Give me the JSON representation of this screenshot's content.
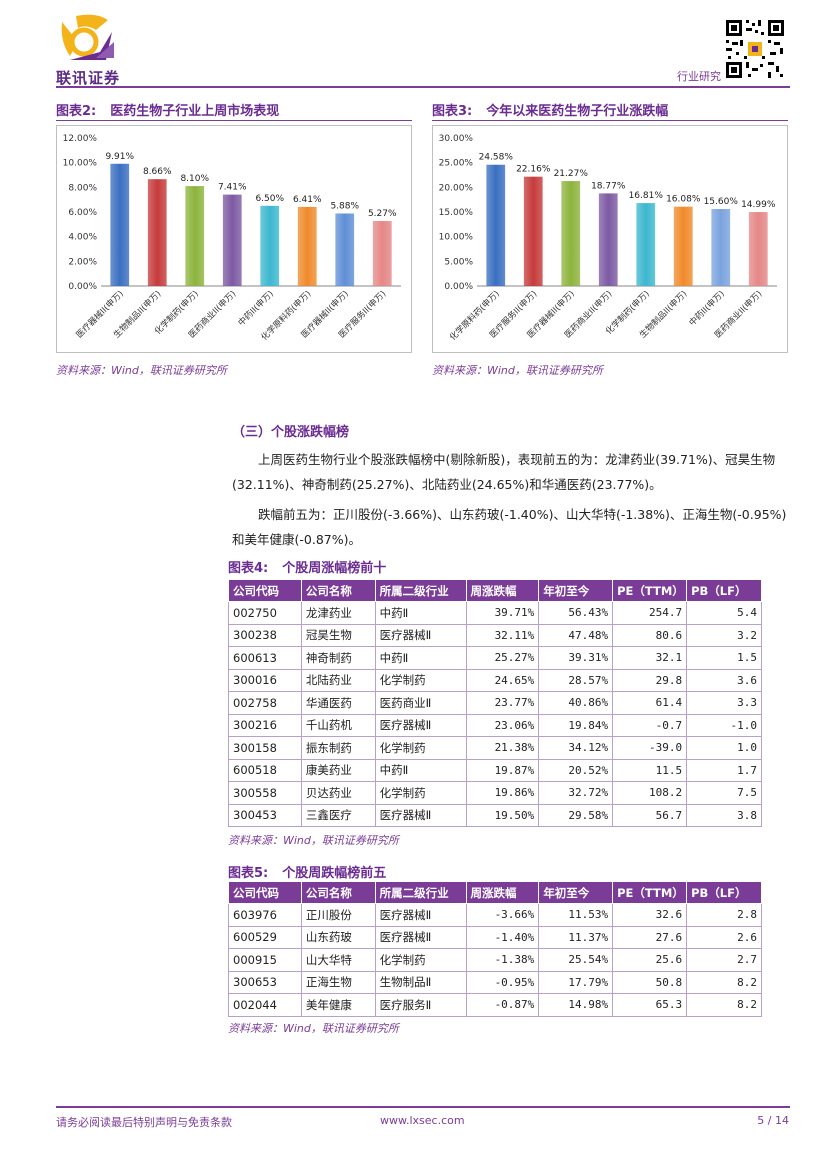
{
  "header": {
    "logo_text": "联讯证券",
    "section_label": "行业研究",
    "colors": {
      "accent": "#7a3c96",
      "logo_yellow": "#f3b41b"
    }
  },
  "figures": {
    "fig2": {
      "num": "图表2:",
      "title": "医药生物子行业上周市场表现",
      "source": "资料来源：Wind，联讯证券研究所"
    },
    "fig3": {
      "num": "图表3:",
      "title": "今年以来医药生物子行业涨跌幅",
      "source": "资料来源：Wind，联讯证券研究所"
    },
    "fig4": {
      "num": "图表4:",
      "title": "个股周涨幅榜前十",
      "source": "资料来源：Wind，联讯证券研究所"
    },
    "fig5": {
      "num": "图表5:",
      "title": "个股周跌幅榜前五",
      "source": "资料来源：Wind，联讯证券研究所"
    }
  },
  "chart_data": [
    {
      "type": "bar",
      "categories": [
        "医疗器械II(申万)",
        "生物制品II(申万)",
        "化学制药(申万)",
        "医药商业II(申万)",
        "中药II(申万)",
        "化学原料药(申万)",
        "医疗器械II(申万)",
        "医疗服务II(申万)"
      ],
      "values": [
        9.91,
        8.66,
        8.1,
        7.41,
        6.5,
        6.41,
        5.88,
        5.27
      ],
      "value_labels": [
        "9.91%",
        "8.66%",
        "8.10%",
        "7.41%",
        "6.50%",
        "6.41%",
        "5.88%",
        "5.27%"
      ],
      "y_ticks": [
        "0.00%",
        "2.00%",
        "4.00%",
        "6.00%",
        "8.00%",
        "10.00%",
        "12.00%"
      ],
      "ylim": [
        0,
        12
      ],
      "colors": [
        "#3a6fc1",
        "#c63b3b",
        "#8db33d",
        "#7d5aa3",
        "#3db7cf",
        "#f08a2b",
        "#5f8fd6",
        "#e58787"
      ],
      "grid": false
    },
    {
      "type": "bar",
      "categories": [
        "化学原料药(申万)",
        "医疗服务II(申万)",
        "医疗器械II(申万)",
        "医药商业II(申万)",
        "化学制药(申万)",
        "生物制品II(申万)",
        "中药II(申万)",
        "医药商业II(申万)"
      ],
      "values": [
        24.58,
        22.16,
        21.27,
        18.77,
        16.81,
        16.08,
        15.6,
        14.99
      ],
      "value_labels": [
        "24.58%",
        "22.16%",
        "21.27%",
        "18.77%",
        "16.81%",
        "16.08%",
        "15.60%",
        "14.99%"
      ],
      "y_ticks": [
        "0.00%",
        "5.00%",
        "10.00%",
        "15.00%",
        "20.00%",
        "25.00%",
        "30.00%"
      ],
      "ylim": [
        0,
        30
      ],
      "colors": [
        "#3a6fc1",
        "#c63b3b",
        "#8db33d",
        "#7d5aa3",
        "#3db7cf",
        "#f08a2b",
        "#7aa2de",
        "#e58787"
      ],
      "grid": false
    }
  ],
  "section3": {
    "heading": "（三）个股涨跌幅榜",
    "para1": "上周医药生物行业个股涨跌幅榜中(剔除新股)，表现前五的为：龙津药业(39.71%)、冠昊生物  (32.11%)、神奇制药(25.27%)、北陆药业(24.65%)和华通医药(23.77%)。",
    "para2": "跌幅前五为：正川股份(-3.66%)、山东药玻(-1.40%)、山大华特(-1.38%)、正海生物(-0.95%)和美年健康(-0.87%)。"
  },
  "table_headers": [
    "公司代码",
    "公司名称",
    "所属二级行业",
    "周涨跌幅",
    "年初至今",
    "PE（TTM）",
    "PB（LF）"
  ],
  "table_top10": [
    [
      "002750",
      "龙津药业",
      "中药Ⅱ",
      "39.71%",
      "56.43%",
      "254.7",
      "5.4"
    ],
    [
      "300238",
      "冠昊生物",
      "医疗器械Ⅱ",
      "32.11%",
      "47.48%",
      "80.6",
      "3.2"
    ],
    [
      "600613",
      "神奇制药",
      "中药Ⅱ",
      "25.27%",
      "39.31%",
      "32.1",
      "1.5"
    ],
    [
      "300016",
      "北陆药业",
      "化学制药",
      "24.65%",
      "28.57%",
      "29.8",
      "3.6"
    ],
    [
      "002758",
      "华通医药",
      "医药商业Ⅱ",
      "23.77%",
      "40.86%",
      "61.4",
      "3.3"
    ],
    [
      "300216",
      "千山药机",
      "医疗器械Ⅱ",
      "23.06%",
      "19.84%",
      "-0.7",
      "-1.0"
    ],
    [
      "300158",
      "振东制药",
      "化学制药",
      "21.38%",
      "34.12%",
      "-39.0",
      "1.0"
    ],
    [
      "600518",
      "康美药业",
      "中药Ⅱ",
      "19.87%",
      "20.52%",
      "11.5",
      "1.7"
    ],
    [
      "300558",
      "贝达药业",
      "化学制药",
      "19.86%",
      "32.72%",
      "108.2",
      "7.5"
    ],
    [
      "300453",
      "三鑫医疗",
      "医疗器械Ⅱ",
      "19.50%",
      "29.58%",
      "56.7",
      "3.8"
    ]
  ],
  "table_bottom5": [
    [
      "603976",
      "正川股份",
      "医疗器械Ⅱ",
      "-3.66%",
      "11.53%",
      "32.6",
      "2.8"
    ],
    [
      "600529",
      "山东药玻",
      "医疗器械Ⅱ",
      "-1.40%",
      "11.37%",
      "27.6",
      "2.6"
    ],
    [
      "000915",
      "山大华特",
      "化学制药",
      "-1.38%",
      "25.54%",
      "25.6",
      "2.7"
    ],
    [
      "300653",
      "正海生物",
      "生物制品Ⅱ",
      "-0.95%",
      "17.79%",
      "50.8",
      "8.2"
    ],
    [
      "002044",
      "美年健康",
      "医疗服务Ⅱ",
      "-0.87%",
      "14.98%",
      "65.3",
      "8.2"
    ]
  ],
  "footer": {
    "disclaimer": "请务必阅读最后特别声明与免责条款",
    "website": "www.lxsec.com",
    "page": "5 / 14"
  }
}
